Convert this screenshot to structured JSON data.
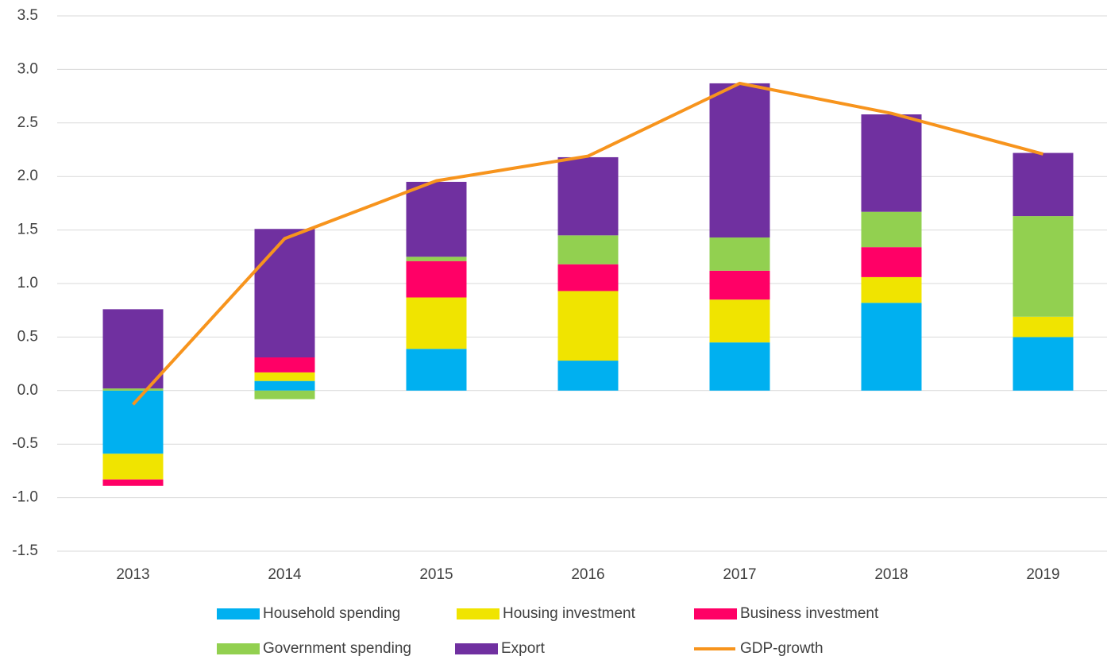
{
  "chart_data": {
    "type": "bar",
    "stacked": true,
    "categories": [
      "2013",
      "2014",
      "2015",
      "2016",
      "2017",
      "2018",
      "2019"
    ],
    "series": [
      {
        "name": "Household spending",
        "color": "#00b0f0",
        "values": [
          -0.59,
          0.09,
          0.39,
          0.28,
          0.45,
          0.82,
          0.5
        ]
      },
      {
        "name": "Housing investment",
        "color": "#f0e400",
        "values": [
          -0.24,
          0.08,
          0.48,
          0.65,
          0.4,
          0.24,
          0.19
        ]
      },
      {
        "name": "Business investment",
        "color": "#ff0066",
        "values": [
          -0.06,
          0.14,
          0.34,
          0.25,
          0.27,
          0.28,
          0
        ]
      },
      {
        "name": "Government spending",
        "color": "#92d050",
        "values": [
          0.02,
          -0.08,
          0.04,
          0.27,
          0.31,
          0.33,
          0.94
        ]
      },
      {
        "name": "Export",
        "color": "#7030a0",
        "values": [
          0.74,
          1.2,
          0.7,
          0.73,
          1.44,
          0.91,
          0.59
        ]
      },
      {
        "name": "GDP-growth",
        "color": "#f7941d",
        "type": "line",
        "values": [
          -0.13,
          1.42,
          1.96,
          2.19,
          2.87,
          2.59,
          2.21
        ]
      }
    ],
    "ylim": [
      -1.5,
      3.5
    ],
    "yticks": [
      -1.5,
      {
        "value": -1,
        "label": "-1.0"
      },
      -0.5,
      {
        "value": 0,
        "label": "0.0"
      },
      0.5,
      {
        "value": 1,
        "label": "1.0"
      },
      1.5,
      {
        "value": 2,
        "label": "2.0"
      },
      2.5,
      {
        "value": 3,
        "label": "3.0"
      },
      3.5
    ],
    "grid": true,
    "legend": "bottom"
  }
}
